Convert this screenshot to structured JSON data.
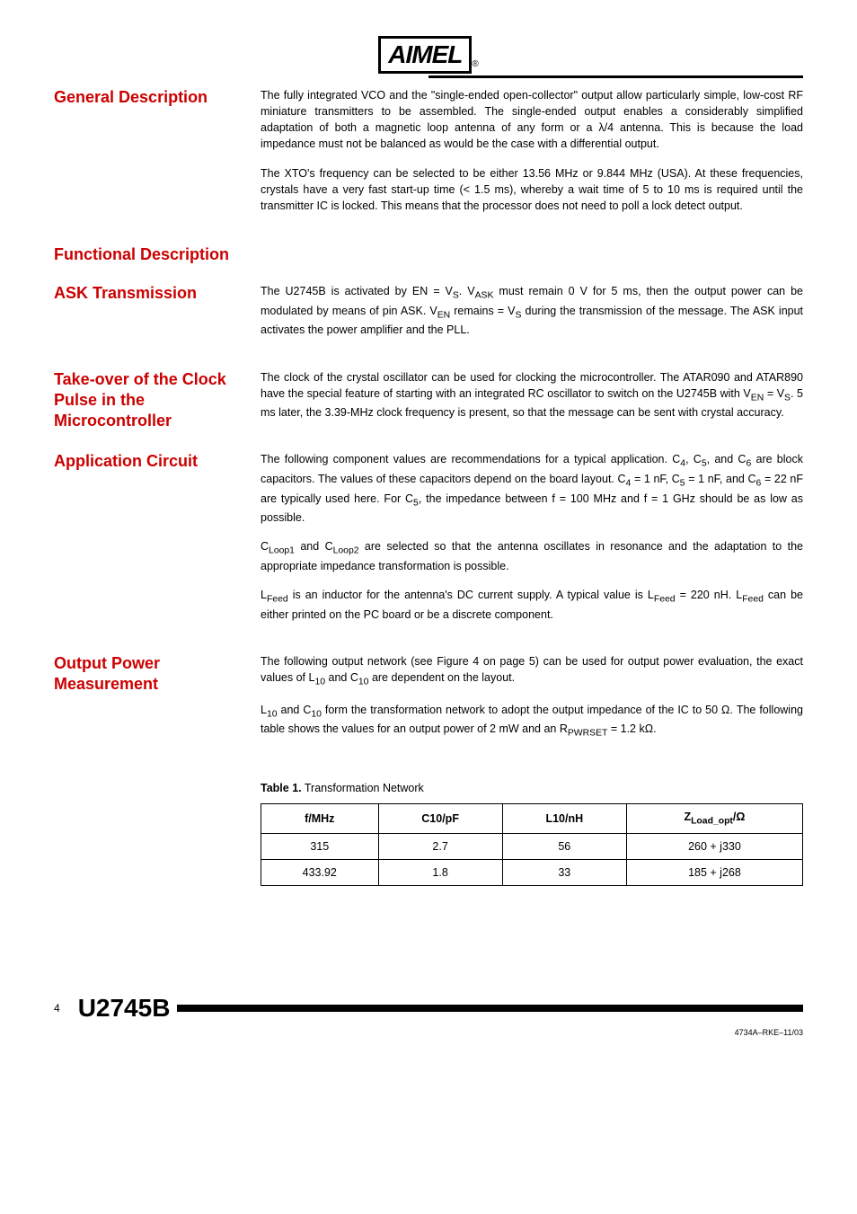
{
  "logo": {
    "text": "AIMEL",
    "registered": "®"
  },
  "sections": [
    {
      "heading": "General Description",
      "paragraphs": [
        "The fully integrated VCO and the \"single-ended open-collector\" output allow particularly simple, low-cost RF miniature transmitters to be assembled. The single-ended output enables a considerably simplified adaptation of both a magnetic loop antenna of any form or a λ/4 antenna. This is because the load impedance must not be balanced as would be the case with a differential output.",
        "The XTO's frequency can be selected to be either 13.56 MHz or 9.844 MHz (USA). At these frequencies, crystals have a very fast start-up time (< 1.5 ms), whereby a wait time of 5 to 10 ms is required until the transmitter IC is locked. This means that the processor does not need to poll a lock detect output."
      ]
    },
    {
      "heading": "Functional Description",
      "paragraphs": []
    },
    {
      "heading": "ASK Transmission",
      "paragraphs": [
        "The U2745B is activated by EN = V<sub>S</sub>. V<sub>ASK</sub> must remain 0 V for 5 ms, then the output power can be modulated by means of pin ASK. V<sub>EN</sub> remains = V<sub>S</sub> during the transmission of the message. The ASK input activates the power amplifier and the PLL."
      ]
    },
    {
      "heading": "Take-over of the Clock Pulse in the Microcontroller",
      "paragraphs": [
        "The clock of the crystal oscillator can be used for clocking the microcontroller. The ATAR090 and ATAR890 have the special feature of starting with an integrated RC oscillator to switch on the U2745B with V<sub>EN</sub> = V<sub>S</sub>. 5 ms later, the 3.39-MHz clock frequency is present, so that the message can be sent with crystal accuracy."
      ]
    },
    {
      "heading": "Application Circuit",
      "paragraphs": [
        "The following component values are recommendations for a typical application. C<sub>4</sub>, C<sub>5</sub>, and C<sub>6</sub> are block capacitors. The values of these capacitors depend on the board layout. C<sub>4</sub> = 1 nF, C<sub>5</sub> = 1 nF, and C<sub>6</sub> = 22 nF are typically used here. For C<sub>5</sub>, the impedance between f = 100 MHz and f = 1 GHz should be as low as possible.",
        "C<sub>Loop1</sub> and C<sub>Loop2</sub> are selected so that the antenna oscillates in resonance and the adaptation to the appropriate impedance transformation is possible.",
        "L<sub>Feed</sub> is an inductor for the antenna's DC current supply. A typical value is L<sub>Feed</sub> = 220 nH. L<sub>Feed</sub> can be either printed on the PC board or be a discrete component."
      ]
    },
    {
      "heading": "Output Power Measurement",
      "paragraphs": [
        "The following output network (see Figure 4 on page 5) can be used for output power evaluation, the exact values of L<sub>10</sub> and C<sub>10</sub> are dependent on the layout.",
        "L<sub>10</sub> and C<sub>10</sub> form the transformation network to adopt the output impedance of the IC to 50 Ω. The following table shows the values for an output power of 2 mW and an R<sub>PWRSET</sub> = 1.2 kΩ."
      ]
    }
  ],
  "table": {
    "caption_label": "Table 1.",
    "caption_text": "Transformation Network",
    "headers": [
      "f/MHz",
      "C10/pF",
      "L10/nH",
      "Z<sub>Load_opt</sub>/Ω"
    ],
    "rows": [
      [
        "315",
        "2.7",
        "56",
        "260 + j330"
      ],
      [
        "433.92",
        "1.8",
        "33",
        "185 + j268"
      ]
    ]
  },
  "footer": {
    "page": "4",
    "product": "U2745B",
    "docref": "4734A–RKE–11/03"
  }
}
